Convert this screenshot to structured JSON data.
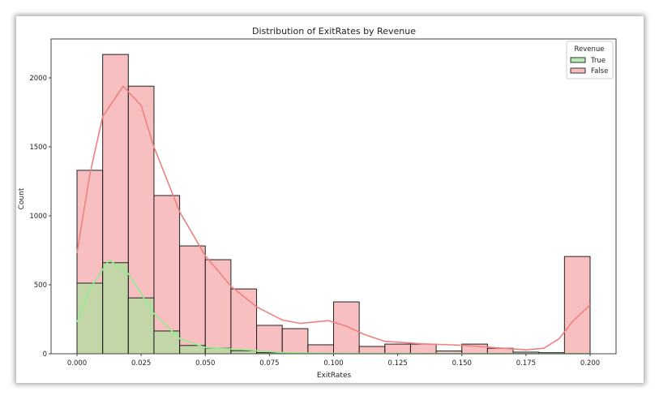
{
  "chart_data": {
    "type": "bar",
    "title": "Distribution of ExitRates by Revenue",
    "xlabel": "ExitRates",
    "ylabel": "Count",
    "xlim": [
      -0.01,
      0.21
    ],
    "ylim": [
      0,
      2280
    ],
    "xticks": [
      "0.000",
      "0.025",
      "0.050",
      "0.075",
      "0.100",
      "0.125",
      "0.150",
      "0.175",
      "0.200"
    ],
    "yticks": [
      "0",
      "500",
      "1000",
      "1500",
      "2000"
    ],
    "bin_edges_start": 0,
    "bin_width": 0.01,
    "legend": {
      "title": "Revenue",
      "placement": "top-right",
      "entries": [
        "True",
        "False"
      ]
    },
    "series": [
      {
        "name": "False",
        "color": "#f08080",
        "values": [
          1330,
          2170,
          1940,
          1147,
          782,
          682,
          470,
          206,
          182,
          65,
          376,
          53,
          70,
          70,
          20,
          70,
          40,
          12,
          8,
          705
        ],
        "kde": [
          [
            0,
            730
          ],
          [
            0.005,
            1300
          ],
          [
            0.01,
            1720
          ],
          [
            0.018,
            1940
          ],
          [
            0.025,
            1800
          ],
          [
            0.03,
            1500
          ],
          [
            0.04,
            1030
          ],
          [
            0.05,
            710
          ],
          [
            0.06,
            490
          ],
          [
            0.07,
            340
          ],
          [
            0.08,
            245
          ],
          [
            0.087,
            220
          ],
          [
            0.098,
            240
          ],
          [
            0.105,
            200
          ],
          [
            0.112,
            140
          ],
          [
            0.12,
            90
          ],
          [
            0.135,
            72
          ],
          [
            0.15,
            62
          ],
          [
            0.165,
            42
          ],
          [
            0.175,
            28
          ],
          [
            0.182,
            40
          ],
          [
            0.188,
            110
          ],
          [
            0.193,
            230
          ],
          [
            0.2,
            355
          ]
        ]
      },
      {
        "name": "True",
        "color": "#90ee90",
        "values": [
          512,
          660,
          405,
          165,
          60,
          40,
          22,
          8,
          4,
          2,
          2,
          1,
          1,
          1,
          1,
          1,
          1,
          1,
          1,
          1
        ],
        "kde": [
          [
            0,
            230
          ],
          [
            0.005,
            470
          ],
          [
            0.0125,
            680
          ],
          [
            0.02,
            580
          ],
          [
            0.03,
            290
          ],
          [
            0.04,
            110
          ],
          [
            0.05,
            45
          ],
          [
            0.065,
            30
          ],
          [
            0.08,
            8
          ],
          [
            0.1,
            2
          ],
          [
            0.2,
            0
          ]
        ]
      }
    ]
  }
}
